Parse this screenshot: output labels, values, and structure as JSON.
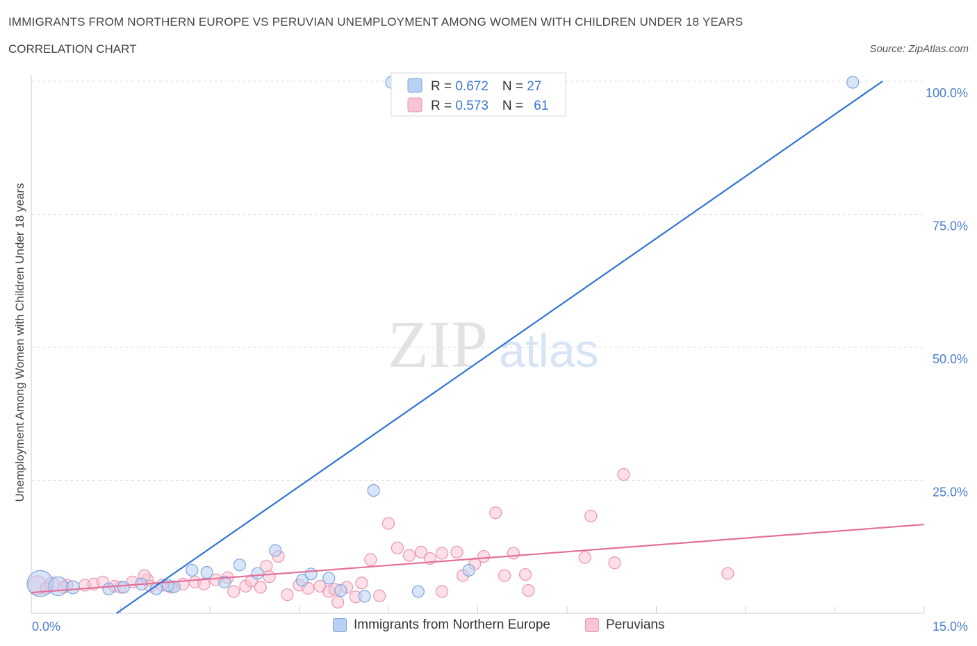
{
  "header": {
    "title": "IMMIGRANTS FROM NORTHERN EUROPE VS PERUVIAN UNEMPLOYMENT AMONG WOMEN WITH CHILDREN UNDER 18 YEARS",
    "subtitle": "CORRELATION CHART",
    "source": "Source: ZipAtlas.com"
  },
  "watermark": {
    "zip": "ZIP",
    "atlas": "atlas"
  },
  "colors": {
    "blue_fill": "#b9d0f4",
    "blue_stroke": "#7ea6e0",
    "blue_line": "#2f73d4",
    "pink_fill": "#f9c5d4",
    "pink_stroke": "#ec95b0",
    "pink_line": "#e4709a",
    "axis_label": "#4a7fcf",
    "grid": "#dddddd"
  },
  "legend": {
    "series": [
      {
        "r_label": "R = ",
        "r_value": "0.672",
        "n_label": "N = ",
        "n_value": "27"
      },
      {
        "r_label": "R = ",
        "r_value": "0.573",
        "n_label": "N = ",
        "n_value": "61"
      }
    ]
  },
  "chart_data": {
    "type": "scatter",
    "title": "IMMIGRANTS FROM NORTHERN EUROPE VS PERUVIAN UNEMPLOYMENT AMONG WOMEN WITH CHILDREN UNDER 18 YEARS",
    "xlabel": "",
    "ylabel": "Unemployment Among Women with Children Under 18 years",
    "xlim": [
      0,
      15
    ],
    "ylim": [
      0,
      100
    ],
    "x_tick_labels": [
      "0.0%",
      "15.0%"
    ],
    "y_tick_labels": [
      "100.0%",
      "75.0%",
      "50.0%",
      "25.0%"
    ],
    "y_ticks": [
      100,
      75,
      50,
      25
    ],
    "grid": true,
    "legend_position": "top-center",
    "series": [
      {
        "name": "Immigrants from Northern Europe",
        "color": "#b9d0f4",
        "r": 0.672,
        "n": 27,
        "trend": {
          "x": [
            1.43,
            14.3
          ],
          "y": [
            0,
            100
          ]
        },
        "points": [
          [
            0.15,
            5.6,
            2.2
          ],
          [
            0.45,
            5.1,
            1.6
          ],
          [
            0.7,
            4.9,
            1.1
          ],
          [
            1.3,
            4.6,
            1.0
          ],
          [
            1.55,
            4.9,
            1.0
          ],
          [
            1.85,
            5.5,
            1.0
          ],
          [
            2.1,
            4.6,
            1.0
          ],
          [
            2.4,
            5.0,
            1.0
          ],
          [
            2.7,
            8.1,
            1.0
          ],
          [
            2.95,
            7.7,
            1.0
          ],
          [
            3.25,
            5.9,
            1.0
          ],
          [
            3.5,
            9.1,
            1.0
          ],
          [
            3.8,
            7.5,
            1.0
          ],
          [
            4.1,
            11.8,
            1.0
          ],
          [
            4.55,
            6.2,
            1.0
          ],
          [
            4.7,
            7.4,
            1.0
          ],
          [
            5.0,
            6.6,
            1.0
          ],
          [
            5.2,
            4.3,
            1.0
          ],
          [
            5.6,
            3.2,
            1.0
          ],
          [
            5.75,
            23.1,
            1.0
          ],
          [
            6.5,
            4.1,
            1.0
          ],
          [
            7.35,
            8.1,
            1.0
          ],
          [
            6.05,
            99.8,
            1.0
          ],
          [
            6.2,
            99.8,
            1.0
          ],
          [
            8.25,
            99.8,
            1.0
          ],
          [
            13.8,
            99.8,
            1.0
          ],
          [
            2.3,
            5.2,
            1.0
          ]
        ]
      },
      {
        "name": "Peruvians",
        "color": "#f9c5d4",
        "r": 0.573,
        "n": 61,
        "trend": {
          "x": [
            0,
            15
          ],
          "y": [
            3.9,
            16.7
          ]
        },
        "points": [
          [
            0.1,
            5.3,
            1.6
          ],
          [
            0.35,
            5.5,
            1.2
          ],
          [
            0.6,
            5.3,
            1.0
          ],
          [
            0.9,
            5.3,
            1.0
          ],
          [
            1.05,
            5.5,
            1.0
          ],
          [
            1.2,
            5.9,
            1.0
          ],
          [
            1.4,
            5.1,
            1.0
          ],
          [
            1.5,
            4.9,
            1.0
          ],
          [
            1.7,
            5.9,
            1.0
          ],
          [
            1.95,
            6.3,
            1.0
          ],
          [
            1.9,
            7.1,
            1.0
          ],
          [
            2.2,
            5.3,
            1.0
          ],
          [
            2.35,
            4.9,
            1.0
          ],
          [
            2.55,
            5.5,
            1.0
          ],
          [
            2.75,
            5.9,
            1.0
          ],
          [
            2.9,
            5.5,
            1.0
          ],
          [
            3.1,
            6.3,
            1.0
          ],
          [
            3.3,
            6.7,
            1.0
          ],
          [
            3.4,
            4.1,
            1.0
          ],
          [
            3.6,
            5.1,
            1.0
          ],
          [
            3.7,
            6.1,
            1.0
          ],
          [
            3.85,
            4.9,
            1.0
          ],
          [
            3.95,
            8.9,
            1.0
          ],
          [
            4.15,
            10.7,
            1.0
          ],
          [
            4.3,
            3.5,
            1.0
          ],
          [
            4.5,
            5.3,
            1.0
          ],
          [
            4.65,
            4.7,
            1.0
          ],
          [
            4.85,
            5.1,
            1.0
          ],
          [
            5.0,
            4.1,
            1.0
          ],
          [
            5.1,
            4.5,
            1.0
          ],
          [
            5.3,
            4.9,
            1.0
          ],
          [
            5.45,
            3.1,
            1.0
          ],
          [
            5.55,
            5.7,
            1.0
          ],
          [
            5.7,
            10.1,
            1.0
          ],
          [
            5.85,
            3.3,
            1.0
          ],
          [
            6.0,
            16.9,
            1.0
          ],
          [
            6.15,
            12.3,
            1.0
          ],
          [
            6.35,
            10.9,
            1.0
          ],
          [
            6.55,
            11.5,
            1.0
          ],
          [
            6.7,
            10.3,
            1.0
          ],
          [
            6.9,
            11.3,
            1.0
          ],
          [
            7.15,
            11.5,
            1.0
          ],
          [
            7.25,
            7.1,
            1.0
          ],
          [
            7.45,
            9.3,
            1.0
          ],
          [
            7.6,
            10.7,
            1.0
          ],
          [
            7.8,
            18.9,
            1.0
          ],
          [
            7.95,
            7.1,
            1.0
          ],
          [
            8.1,
            11.3,
            1.0
          ],
          [
            8.3,
            7.3,
            1.0
          ],
          [
            8.35,
            4.3,
            1.0
          ],
          [
            9.3,
            10.5,
            1.0
          ],
          [
            9.4,
            18.3,
            1.0
          ],
          [
            9.8,
            9.5,
            1.0
          ],
          [
            9.95,
            26.1,
            1.0
          ],
          [
            11.7,
            7.5,
            1.0
          ],
          [
            0.25,
            4.7,
            1.0
          ],
          [
            0.55,
            4.9,
            1.0
          ],
          [
            2.0,
            5.1,
            1.0
          ],
          [
            4.0,
            6.9,
            1.0
          ],
          [
            5.15,
            2.1,
            1.0
          ],
          [
            6.9,
            4.1,
            1.0
          ]
        ]
      }
    ]
  }
}
